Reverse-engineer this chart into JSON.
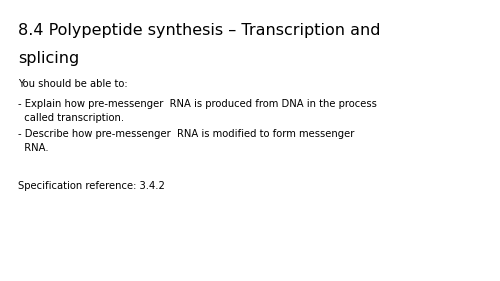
{
  "title_line1": "8.4 Polypeptide synthesis – Transcription and",
  "title_line2": "splicing",
  "subtitle": "You should be able to:",
  "bullet1_line1": "- Explain how pre-messenger  RNA is produced from DNA in the process",
  "bullet1_line2": "  called transcription.",
  "bullet2_line1": "- Describe how pre-messenger  RNA is modified to form messenger",
  "bullet2_line2": "  RNA.",
  "spec_ref": "Specification reference: 3.4.2",
  "background_color": "#ffffff",
  "text_color": "#000000",
  "title_fontsize": 11.5,
  "body_fontsize": 7.2,
  "fig_width": 5.0,
  "fig_height": 2.81,
  "dpi": 100
}
